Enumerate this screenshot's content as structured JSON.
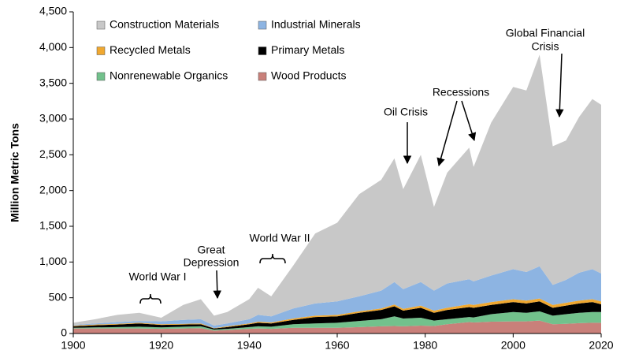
{
  "chart_data": {
    "type": "stacked_area",
    "y_label": "Million Metric Tons",
    "x": [
      1900,
      1905,
      1910,
      1915,
      1920,
      1925,
      1929,
      1932,
      1935,
      1940,
      1942,
      1945,
      1950,
      1955,
      1960,
      1965,
      1970,
      1973,
      1975,
      1979,
      1982,
      1985,
      1990,
      1991,
      1995,
      2000,
      2003,
      2006,
      2009,
      2012,
      2015,
      2018,
      2020
    ],
    "series": [
      {
        "name": "Wood Products",
        "color": "#c9807a",
        "values": [
          70,
          70,
          70,
          70,
          65,
          70,
          75,
          40,
          50,
          65,
          70,
          65,
          80,
          80,
          80,
          90,
          100,
          105,
          100,
          110,
          105,
          130,
          160,
          155,
          165,
          170,
          170,
          180,
          130,
          135,
          145,
          150,
          150
        ]
      },
      {
        "name": "Nonrenewable Organics",
        "color": "#72c18c",
        "values": [
          10,
          15,
          20,
          25,
          20,
          25,
          25,
          15,
          15,
          25,
          30,
          30,
          50,
          60,
          70,
          85,
          100,
          135,
          110,
          110,
          75,
          70,
          70,
          70,
          105,
          130,
          120,
          130,
          120,
          135,
          145,
          150,
          150
        ]
      },
      {
        "name": "Primary Metals",
        "color": "#000000",
        "values": [
          20,
          30,
          35,
          45,
          35,
          30,
          30,
          15,
          25,
          40,
          50,
          45,
          60,
          90,
          90,
          115,
          130,
          140,
          110,
          140,
          110,
          130,
          140,
          135,
          130,
          140,
          130,
          140,
          110,
          120,
          130,
          140,
          110
        ]
      },
      {
        "name": "Recycled Metals",
        "color": "#f0a830",
        "values": [
          10,
          10,
          10,
          10,
          10,
          10,
          10,
          5,
          10,
          10,
          15,
          15,
          20,
          20,
          20,
          20,
          20,
          25,
          25,
          30,
          30,
          30,
          40,
          40,
          40,
          40,
          40,
          40,
          40,
          40,
          40,
          40,
          40
        ]
      },
      {
        "name": "Industrial Minerals",
        "color": "#8db4e2",
        "values": [
          10,
          15,
          25,
          25,
          40,
          55,
          60,
          35,
          40,
          60,
          95,
          85,
          140,
          170,
          190,
          210,
          250,
          315,
          275,
          330,
          280,
          340,
          350,
          330,
          370,
          420,
          400,
          450,
          280,
          320,
          390,
          420,
          390
        ]
      },
      {
        "name": "Construction Materials",
        "color": "#c8c8c8",
        "values": [
          30,
          60,
          100,
          115,
          50,
          210,
          280,
          140,
          160,
          280,
          380,
          280,
          600,
          980,
          1100,
          1430,
          1550,
          1730,
          1400,
          1780,
          1170,
          1550,
          1840,
          1600,
          2140,
          2550,
          2540,
          2960,
          1940,
          1950,
          2180,
          2380,
          2360
        ]
      }
    ],
    "xlim": [
      1900,
      2020
    ],
    "xticks": [
      1900,
      1920,
      1940,
      1960,
      1980,
      2000,
      2020
    ],
    "ylim": [
      0,
      4500
    ],
    "yticks": [
      0,
      500,
      {
        "value": 1000,
        "label": "1,000"
      },
      {
        "value": 1500,
        "label": "1,500"
      },
      {
        "value": 2000,
        "label": "2,000"
      },
      {
        "value": 2500,
        "label": "2,500"
      },
      {
        "value": 3000,
        "label": "3,000"
      },
      {
        "value": 3500,
        "label": "3,500"
      },
      {
        "value": 4000,
        "label": "4,000"
      },
      {
        "value": 4500,
        "label": "4,500"
      }
    ],
    "legend": "upper left",
    "annotations": [
      {
        "lines": [
          "World War I"
        ]
      },
      {
        "lines": [
          "Great",
          "Depression"
        ]
      },
      {
        "lines": [
          "World War II"
        ]
      },
      {
        "lines": [
          "Oil Crisis"
        ]
      },
      {
        "lines": [
          "Recessions"
        ]
      },
      {
        "lines": [
          "Global Financial",
          "Crisis"
        ]
      }
    ]
  }
}
